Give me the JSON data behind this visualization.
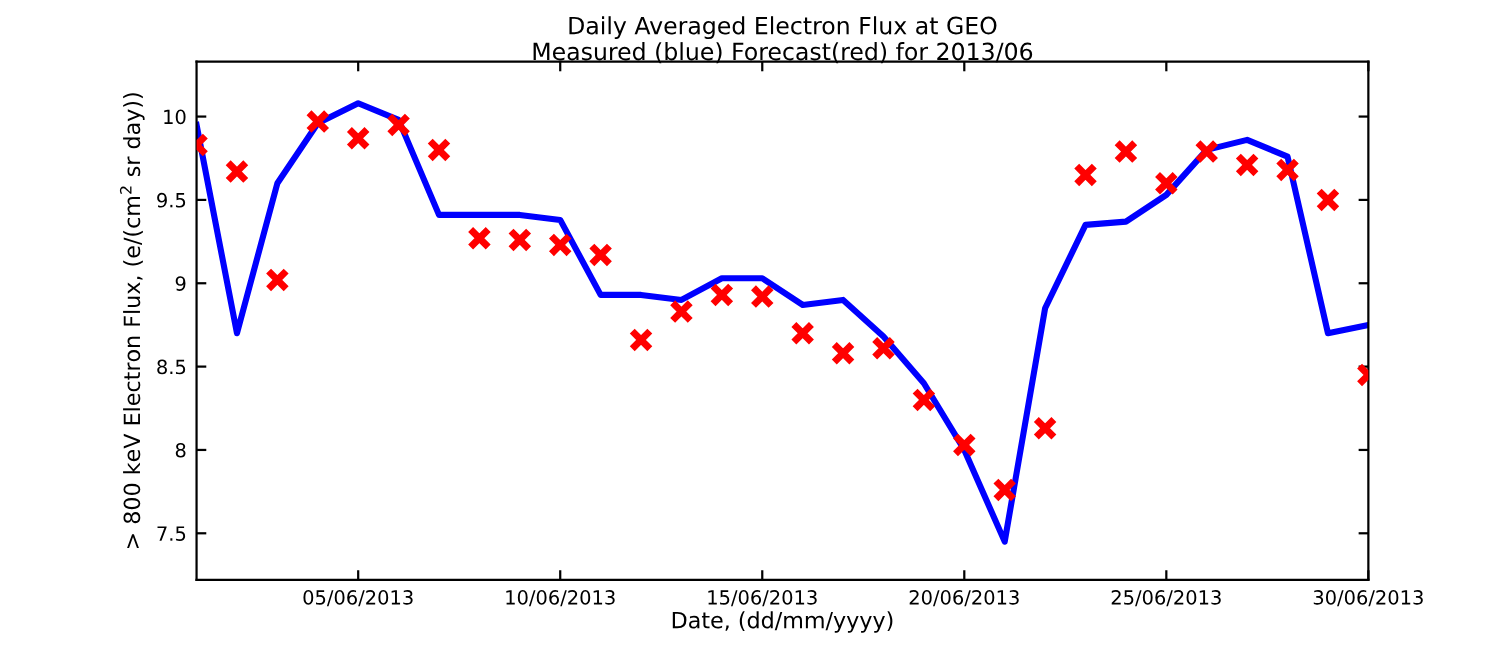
{
  "chart_data": {
    "type": "line",
    "title": "Daily Averaged Electron Flux at GEO",
    "subtitle": "Measured (blue) Forecast(red) for 2013/06",
    "xlabel": "Date, (dd/mm/yyyy)",
    "ylabel": "> 800 keV Electron Flux, (e/(cm$^{2}$ sr day))",
    "x": [
      "2013-06-01",
      "2013-06-02",
      "2013-06-03",
      "2013-06-04",
      "2013-06-05",
      "2013-06-06",
      "2013-06-07",
      "2013-06-08",
      "2013-06-09",
      "2013-06-10",
      "2013-06-11",
      "2013-06-12",
      "2013-06-13",
      "2013-06-14",
      "2013-06-15",
      "2013-06-16",
      "2013-06-17",
      "2013-06-18",
      "2013-06-19",
      "2013-06-20",
      "2013-06-21",
      "2013-06-22",
      "2013-06-23",
      "2013-06-24",
      "2013-06-25",
      "2013-06-26",
      "2013-06-27",
      "2013-06-28",
      "2013-06-29",
      "2013-06-30"
    ],
    "series": [
      {
        "color": "#0000ff",
        "marker": "none",
        "values": [
          9.95,
          8.7,
          9.6,
          9.96,
          10.08,
          9.98,
          9.41,
          9.41,
          9.41,
          9.38,
          8.93,
          8.93,
          8.9,
          9.03,
          9.03,
          8.87,
          8.9,
          8.68,
          8.4,
          8.0,
          7.45,
          8.85,
          9.35,
          9.37,
          9.53,
          9.8,
          9.86,
          9.76,
          8.7,
          8.75
        ]
      },
      {
        "type": "scatter",
        "color": "#ff0000",
        "marker": "cross",
        "values": [
          9.83,
          9.67,
          9.02,
          9.97,
          9.87,
          9.95,
          9.8,
          9.27,
          9.26,
          9.23,
          9.17,
          8.66,
          8.83,
          8.93,
          8.92,
          8.7,
          8.58,
          8.61,
          8.3,
          8.03,
          7.76,
          8.13,
          9.65,
          9.79,
          9.6,
          9.79,
          9.71,
          9.68,
          9.5,
          8.45
        ]
      }
    ],
    "xlim": [
      "2013-06-01",
      "2013-06-30"
    ],
    "xticks": [
      {
        "value": "2013-06-05",
        "label": "05/06/2013"
      },
      {
        "value": "2013-06-10",
        "label": "10/06/2013"
      },
      {
        "value": "2013-06-15",
        "label": "15/06/2013"
      },
      {
        "value": "2013-06-20",
        "label": "20/06/2013"
      },
      {
        "value": "2013-06-25",
        "label": "25/06/2013"
      },
      {
        "value": "2013-06-30",
        "label": "30/06/2013"
      }
    ],
    "ylim": [
      7.22,
      10.33
    ],
    "yticks": [
      7.5,
      8,
      8.5,
      9,
      9.5,
      10
    ],
    "grid": false,
    "legend": false
  }
}
